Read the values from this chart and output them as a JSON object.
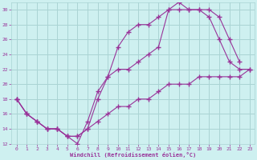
{
  "xlabel": "Windchill (Refroidissement éolien,°C)",
  "bg_color": "#cef0f0",
  "grid_color": "#aad4d4",
  "line_color": "#993399",
  "xlim": [
    -0.5,
    23.5
  ],
  "ylim": [
    12,
    31
  ],
  "xticks": [
    0,
    1,
    2,
    3,
    4,
    5,
    6,
    7,
    8,
    9,
    10,
    11,
    12,
    13,
    14,
    15,
    16,
    17,
    18,
    19,
    20,
    21,
    22,
    23
  ],
  "yticks": [
    12,
    14,
    16,
    18,
    20,
    22,
    24,
    26,
    28,
    30
  ],
  "line1_x": [
    0,
    1,
    2,
    3,
    4,
    5,
    6,
    7,
    8,
    9,
    10,
    11,
    12,
    13,
    14,
    15,
    16,
    17,
    18,
    19,
    20,
    21,
    22
  ],
  "line1_y": [
    18,
    16,
    15,
    14,
    14,
    13,
    12,
    15,
    19,
    21,
    25,
    27,
    28,
    28,
    29,
    30,
    31,
    30,
    30,
    30,
    29,
    26,
    23
  ],
  "line2_x": [
    0,
    1,
    2,
    3,
    4,
    5,
    6,
    7,
    8,
    9,
    10,
    11,
    12,
    13,
    14,
    15,
    16,
    17,
    18,
    19,
    20,
    21,
    22,
    23
  ],
  "line2_y": [
    18,
    16,
    15,
    14,
    14,
    13,
    13,
    14,
    18,
    21,
    22,
    22,
    23,
    24,
    25,
    30,
    30,
    30,
    30,
    29,
    26,
    23,
    22,
    22
  ],
  "line3_x": [
    0,
    1,
    2,
    3,
    4,
    5,
    6,
    7,
    8,
    9,
    10,
    11,
    12,
    13,
    14,
    15,
    16,
    17,
    18,
    19,
    20,
    21,
    22,
    23
  ],
  "line3_y": [
    18,
    16,
    15,
    14,
    14,
    13,
    13,
    14,
    15,
    16,
    17,
    17,
    18,
    18,
    19,
    20,
    20,
    20,
    21,
    21,
    21,
    21,
    21,
    22
  ]
}
